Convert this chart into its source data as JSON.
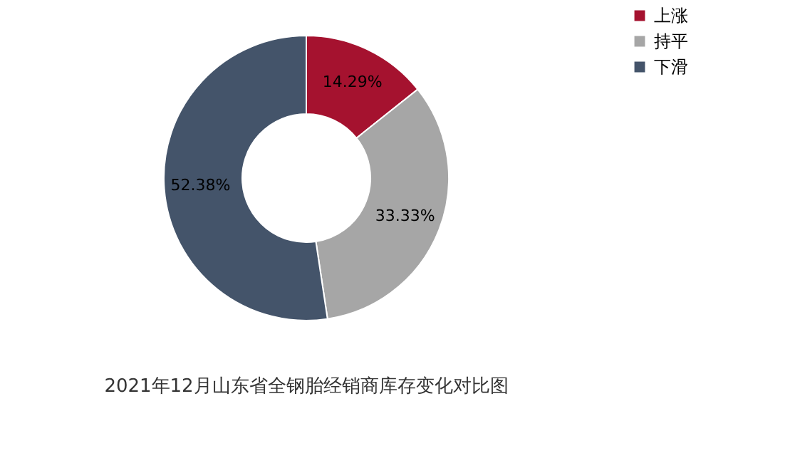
{
  "chart_data": {
    "type": "donut",
    "title": "2021年12月山东省全钢胎经销商库存变化对比图",
    "categories": [
      "上涨",
      "持平",
      "下滑"
    ],
    "values": [
      14.29,
      33.33,
      52.38
    ],
    "value_labels": [
      "14.29%",
      "33.33%",
      "52.38%"
    ],
    "colors": [
      "#a5122f",
      "#a6a6a6",
      "#44546a"
    ],
    "legend": "right"
  }
}
